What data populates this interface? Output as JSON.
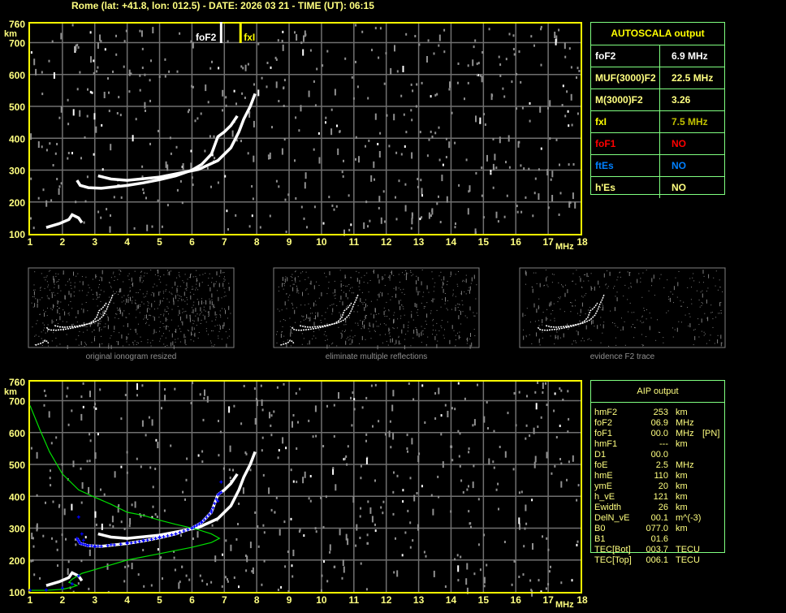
{
  "header": {
    "title": "Rome (lat: +41.8, lon: 012.5) - DATE: 2026 03 21 - TIME (UT): 06:15"
  },
  "colors": {
    "frame": "#ffff00",
    "grid": "#707070",
    "table_border": "#80ff80",
    "profile": "#00e000",
    "crosses": "#0000ff",
    "fof1": "#ff0000",
    "ftes": "#0080ff"
  },
  "chart_data": [
    {
      "type": "scatter",
      "name": "ionogram-upper",
      "xlim": [
        1,
        18
      ],
      "ylim": [
        100,
        760
      ],
      "xlabel": "MHz",
      "ylabel": "km",
      "xticks": [
        "1",
        "2",
        "3",
        "4",
        "5",
        "6",
        "7",
        "8",
        "9",
        "10",
        "11",
        "12",
        "13",
        "14",
        "15",
        "16",
        "17",
        "18"
      ],
      "yticks": [
        "100",
        "200",
        "300",
        "400",
        "500",
        "600",
        "700",
        "760"
      ],
      "grid": true,
      "markers": [
        {
          "label": "foF2",
          "freq": 6.9,
          "color": "#ffffff"
        },
        {
          "label": "fxI",
          "freq": 7.5,
          "color": "#ffff00"
        }
      ],
      "traces": {
        "o_trace": [
          [
            2.45,
            268
          ],
          [
            2.55,
            252
          ],
          [
            2.8,
            245
          ],
          [
            3.2,
            243
          ],
          [
            4,
            252
          ],
          [
            4.5,
            260
          ],
          [
            5,
            270
          ],
          [
            5.5,
            282
          ],
          [
            6,
            300
          ],
          [
            6.3,
            318
          ],
          [
            6.6,
            350
          ],
          [
            6.8,
            405
          ],
          [
            7,
            420
          ],
          [
            7.2,
            440
          ],
          [
            7.4,
            470
          ]
        ],
        "x_trace": [
          [
            3.1,
            282
          ],
          [
            3.5,
            272
          ],
          [
            4,
            268
          ],
          [
            5,
            278
          ],
          [
            5.7,
            292
          ],
          [
            6.2,
            302
          ],
          [
            6.8,
            330
          ],
          [
            7.2,
            370
          ],
          [
            7.45,
            420
          ],
          [
            7.6,
            460
          ],
          [
            7.8,
            500
          ],
          [
            7.95,
            540
          ]
        ],
        "e_trace": [
          [
            1.5,
            120
          ],
          [
            1.9,
            132
          ],
          [
            2.2,
            145
          ],
          [
            2.3,
            160
          ],
          [
            2.5,
            150
          ],
          [
            2.6,
            135
          ]
        ]
      }
    },
    {
      "type": "scatter",
      "name": "ionogram-lower",
      "xlim": [
        1,
        18
      ],
      "ylim": [
        100,
        760
      ],
      "xlabel": "MHz",
      "ylabel": "km",
      "xticks": [
        "1",
        "2",
        "3",
        "4",
        "5",
        "6",
        "7",
        "8",
        "9",
        "10",
        "11",
        "12",
        "13",
        "14",
        "15",
        "16",
        "17",
        "18"
      ],
      "yticks": [
        "100",
        "200",
        "300",
        "400",
        "500",
        "600",
        "700",
        "760"
      ],
      "grid": true,
      "profile": [
        [
          1,
          685
        ],
        [
          1.3,
          610
        ],
        [
          1.6,
          540
        ],
        [
          2,
          470
        ],
        [
          2.5,
          420
        ],
        [
          3,
          397
        ],
        [
          3.5,
          375
        ],
        [
          4,
          350
        ],
        [
          4.5,
          340
        ],
        [
          5,
          325
        ],
        [
          5.5,
          312
        ],
        [
          5.8,
          305
        ],
        [
          6.2,
          295
        ],
        [
          6.6,
          282
        ],
        [
          6.85,
          268
        ],
        [
          6.6,
          255
        ],
        [
          6,
          240
        ],
        [
          5,
          220
        ],
        [
          4,
          200
        ],
        [
          3.5,
          185
        ],
        [
          3,
          170
        ],
        [
          2.6,
          158
        ],
        [
          2.3,
          140
        ],
        [
          2.2,
          130
        ],
        [
          2.45,
          120
        ],
        [
          2.3,
          115
        ],
        [
          2,
          108
        ],
        [
          1.5,
          105
        ],
        [
          1,
          105
        ]
      ],
      "aip_points": [
        [
          1,
          105
        ],
        [
          1.5,
          106
        ],
        [
          2,
          112
        ],
        [
          2.3,
          125
        ],
        [
          2.5,
          150
        ],
        [
          2.5,
          335
        ],
        [
          2.6,
          282
        ],
        [
          2.65,
          262
        ],
        [
          2.8,
          245
        ],
        [
          3,
          242
        ],
        [
          3.5,
          248
        ],
        [
          4,
          255
        ],
        [
          4.5,
          262
        ],
        [
          5,
          272
        ],
        [
          5.5,
          282
        ],
        [
          6,
          300
        ],
        [
          6.3,
          320
        ],
        [
          6.6,
          355
        ],
        [
          6.8,
          385
        ],
        [
          6.9,
          445
        ]
      ]
    }
  ],
  "thumbnails": [
    {
      "caption": "original ionogram resized"
    },
    {
      "caption": "eliminate multiple reflections"
    },
    {
      "caption": "evidence F2 trace"
    }
  ],
  "autoscala": {
    "title": "AUTOSCALA output",
    "rows": [
      {
        "key": "foF2",
        "value": "6.9 MHz",
        "color": "#ffffff"
      },
      {
        "key": "MUF(3000)F2",
        "value": "22.5 MHz",
        "color": "#ffff80"
      },
      {
        "key": "M(3000)F2",
        "value": "3.26",
        "color": "#ffff80"
      },
      {
        "key": "fxI",
        "value": "7.5 MHz",
        "color": "#ffff00",
        "value_color": "#c0c000"
      },
      {
        "key": "foF1",
        "value": "NO",
        "color": "#ff0000"
      },
      {
        "key": "ftEs",
        "value": "NO",
        "color": "#0080ff"
      },
      {
        "key": "h'Es",
        "value": "NO",
        "color": "#ffff80"
      }
    ]
  },
  "aip": {
    "title": "AIP output",
    "rows": [
      {
        "k": "hmF2",
        "v": "253",
        "u": "km",
        "x": ""
      },
      {
        "k": "foF2",
        "v": "06.9",
        "u": "MHz",
        "x": ""
      },
      {
        "k": "foF1",
        "v": "00.0",
        "u": "MHz",
        "x": "[PN]"
      },
      {
        "k": "hmF1",
        "v": "---",
        "u": "km",
        "x": ""
      },
      {
        "k": "D1",
        "v": "00.0",
        "u": "",
        "x": ""
      },
      {
        "k": "foE",
        "v": "2.5",
        "u": "MHz",
        "x": ""
      },
      {
        "k": "hmE",
        "v": "110",
        "u": "km",
        "x": ""
      },
      {
        "k": "ymE",
        "v": "20",
        "u": "km",
        "x": ""
      },
      {
        "k": "h_vE",
        "v": "121",
        "u": "km",
        "x": ""
      },
      {
        "k": "Ewidth",
        "v": "26",
        "u": "km",
        "x": ""
      },
      {
        "k": "DelN_vE",
        "v": "00.1",
        "u": "m^(-3)",
        "x": ""
      },
      {
        "k": "B0",
        "v": "077.0",
        "u": "km",
        "x": ""
      },
      {
        "k": "B1",
        "v": "01.6",
        "u": "",
        "x": ""
      },
      {
        "k": "TEC[Bot]",
        "v": "003.7",
        "u": "TECU",
        "x": ""
      },
      {
        "k": "TEC[Top]",
        "v": "006.1",
        "u": "TECU",
        "x": ""
      }
    ]
  }
}
